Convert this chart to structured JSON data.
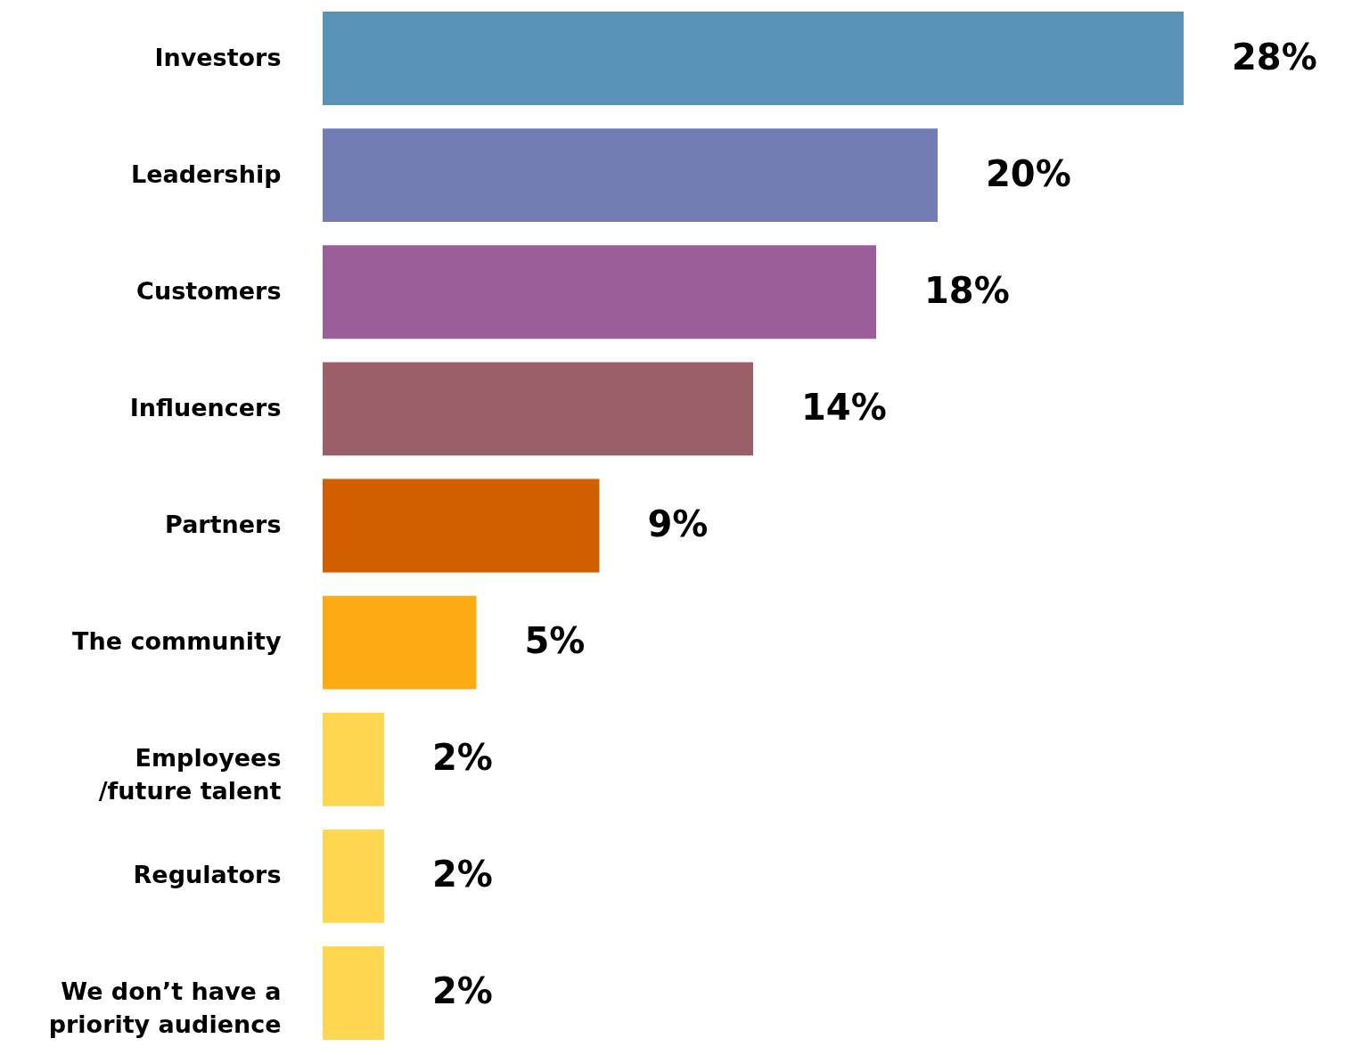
{
  "chart_data": {
    "type": "bar",
    "orientation": "horizontal",
    "categories": [
      "Investors",
      "Leadership",
      "Customers",
      "Influencers",
      "Partners",
      "The community",
      "Employees\n/future talent",
      "Regulators",
      "We don’t have a\npriority audience"
    ],
    "values": [
      28,
      20,
      18,
      14,
      9,
      5,
      2,
      2,
      2
    ],
    "value_labels": [
      "28%",
      "20%",
      "18%",
      "14%",
      "9%",
      "5%",
      "2%",
      "2%",
      "2%"
    ],
    "colors": [
      "#5a93b8",
      "#717db3",
      "#9b5e98",
      "#9b5f67",
      "#d15f00",
      "#fdab13",
      "#fed650",
      "#fed650",
      "#fed650"
    ]
  }
}
